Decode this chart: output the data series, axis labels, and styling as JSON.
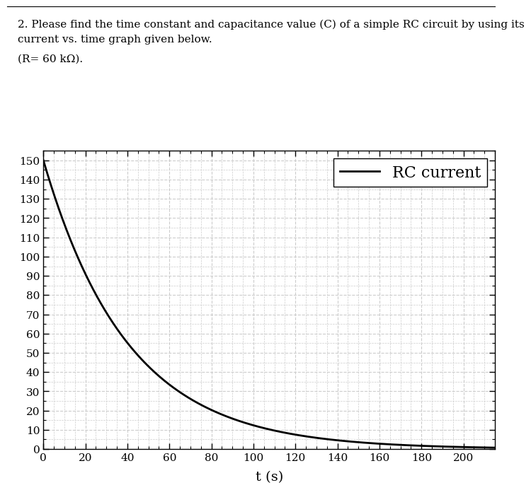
{
  "line1": "2. Please find the time constant and capacitance value (C) of a simple RC circuit by using its",
  "line2": "current vs. time graph given below.",
  "line3": "(R= 60 kΩ).",
  "xlabel": "t (s)",
  "I0": 150,
  "tau": 40,
  "t_start": 0,
  "t_end": 215,
  "xlim": [
    0,
    215
  ],
  "ylim": [
    0,
    155
  ],
  "xticks": [
    0,
    20,
    40,
    60,
    80,
    100,
    120,
    140,
    160,
    180,
    200
  ],
  "yticks": [
    0,
    10,
    20,
    30,
    40,
    50,
    60,
    70,
    80,
    90,
    100,
    110,
    120,
    130,
    140,
    150
  ],
  "grid_color": "#cccccc",
  "line_color": "#000000",
  "legend_label": "RC current",
  "background_color": "#ffffff",
  "fig_width": 7.33,
  "fig_height": 7.03,
  "dpi": 100,
  "text_fontsize": 11,
  "xlabel_fontsize": 14,
  "tick_fontsize": 11,
  "legend_fontsize": 16
}
